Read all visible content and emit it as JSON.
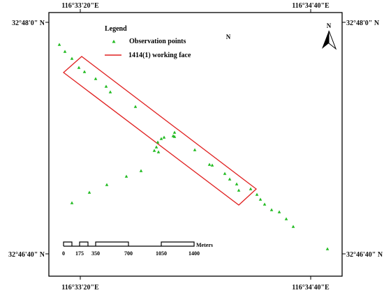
{
  "coordinates": {
    "top_left": "116°33'20\"E",
    "top_right": "116°34'40\"E",
    "bottom_left": "116°33'20\"E",
    "bottom_right": "116°34'40\"E",
    "left_top": "32°48'0\" N",
    "right_top": "32°48'0\" N",
    "left_bottom": "32°46'40\" N",
    "right_bottom": "32°46'40\" N"
  },
  "legend": {
    "title": "Legend",
    "observation_label": "Observation points",
    "working_face_label": "1414(1) working face"
  },
  "north_label": "N",
  "north_arrow_label": "N",
  "scale_bar": {
    "unit": "Meters",
    "ticks": [
      "0",
      "175",
      "350",
      "700",
      "1050",
      "1400"
    ]
  },
  "colors": {
    "observation_point": "#22bb22",
    "working_face": "#e02020",
    "frame": "#000000"
  },
  "icons": [
    "north-arrow-icon",
    "observation-point-marker-icon"
  ]
}
